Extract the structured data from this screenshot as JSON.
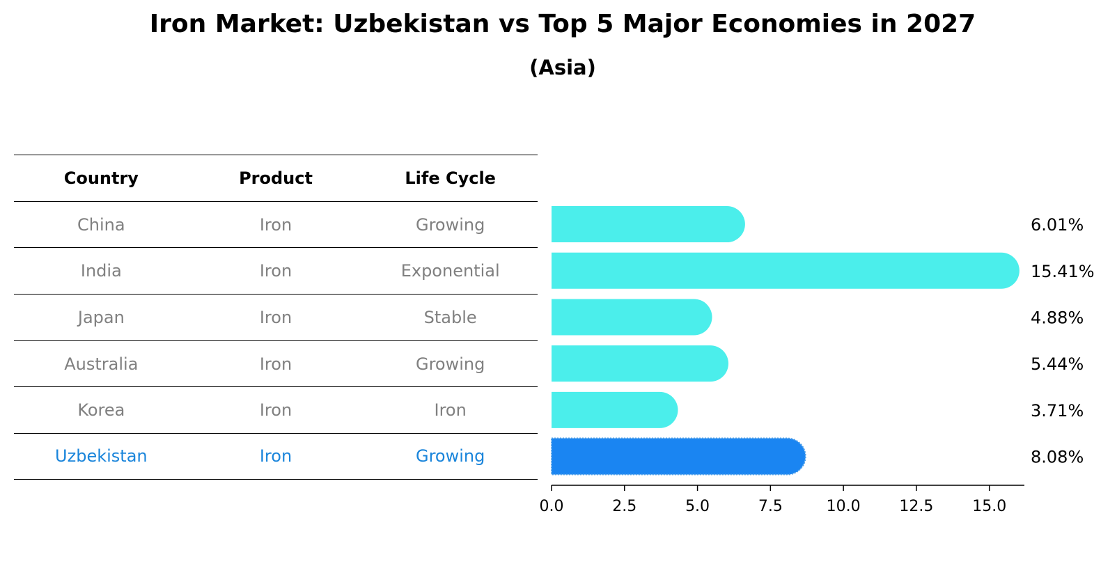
{
  "title": "Iron Market: Uzbekistan vs Top 5 Major Economies in 2027",
  "subtitle": "(Asia)",
  "table": {
    "headers": [
      "Country",
      "Product",
      "Life Cycle"
    ],
    "rows": [
      [
        "China",
        "Iron",
        "Growing"
      ],
      [
        "India",
        "Iron",
        "Exponential"
      ],
      [
        "Japan",
        "Iron",
        "Stable"
      ],
      [
        "Australia",
        "Iron",
        "Growing"
      ],
      [
        "Korea",
        "Iron",
        "Iron"
      ],
      [
        "Uzbekistan",
        "Iron",
        "Growing"
      ]
    ]
  },
  "colors": {
    "bar": "#4beeeb",
    "highlight": "#1a85f2",
    "text_highlight": "#1a85db",
    "text_muted": "#808080"
  },
  "chart_data": {
    "type": "bar",
    "orientation": "horizontal",
    "categories": [
      "China",
      "India",
      "Japan",
      "Australia",
      "Korea",
      "Uzbekistan"
    ],
    "values": [
      6.01,
      15.41,
      4.88,
      5.44,
      3.71,
      8.08
    ],
    "value_labels": [
      "6.01%",
      "15.41%",
      "4.88%",
      "5.44%",
      "3.71%",
      "8.08%"
    ],
    "highlight": "Uzbekistan",
    "xlim": [
      0,
      16.2
    ],
    "xticks": [
      0.0,
      2.5,
      5.0,
      7.5,
      10.0,
      12.5,
      15.0
    ],
    "xtick_labels": [
      "0.0",
      "2.5",
      "5.0",
      "7.5",
      "10.0",
      "12.5",
      "15.0"
    ]
  }
}
